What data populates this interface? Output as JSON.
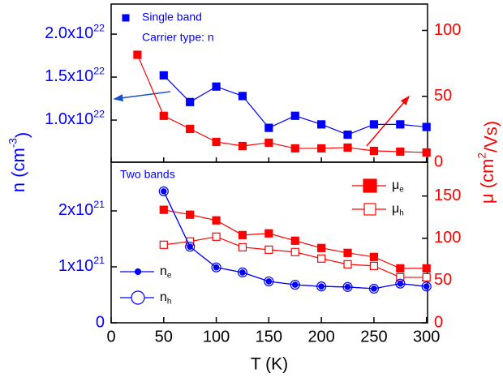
{
  "chart_data": [
    {
      "type": "line",
      "ylabel": {
        "text": "n (cm",
        "sup": "-3",
        "tail": ")"
      },
      "y2label": {
        "text": "μ (cm",
        "sup": "2",
        "tail": "/Vs)"
      },
      "xlim": [
        0,
        301
      ],
      "ylim": [
        5.1e+21,
        2.35e+22
      ],
      "y2lim": [
        0,
        120
      ],
      "yticks": [
        {
          "value": 1e+22,
          "label": "1.0x10",
          "sup": "22"
        },
        {
          "value": 1.5e+22,
          "label": "1.5x10",
          "sup": "22"
        },
        {
          "value": 2e+22,
          "label": "2.0x10",
          "sup": "22"
        }
      ],
      "y2ticks": [
        0,
        50,
        100
      ],
      "annotations": [
        "Carrier type: n"
      ],
      "series": [
        {
          "name": "Single band",
          "color": "#0000ff",
          "marker": "square",
          "axis": "y",
          "x": [
            50,
            75,
            100,
            125,
            150,
            175,
            200,
            225,
            250,
            275,
            300
          ],
          "values": [
            1.52e+22,
            1.21e+22,
            1.39e+22,
            1.28e+22,
            9.1e+21,
            1.05e+22,
            9.5e+21,
            8.3e+21,
            9.5e+21,
            9.5e+21,
            9.2e+21
          ]
        },
        {
          "color": "#ff0000",
          "marker": "square",
          "axis": "y2",
          "x": [
            25,
            50,
            75,
            100,
            125,
            150,
            175,
            200,
            225,
            250,
            275,
            300
          ],
          "values": [
            81.5,
            35.2,
            25.3,
            15.4,
            12.3,
            14.8,
            10.5,
            10.5,
            11.1,
            8.6,
            8.0,
            7.4
          ]
        }
      ]
    },
    {
      "type": "line",
      "xlabel": "T (K)",
      "xlim": [
        0,
        301
      ],
      "ylim": [
        0,
        2.87e+21
      ],
      "y2lim": [
        0,
        190
      ],
      "xticks": [
        0,
        50,
        100,
        150,
        200,
        250,
        300
      ],
      "yticks": [
        0,
        {
          "value": 1e+21,
          "label": "1x10",
          "sup": "21"
        },
        {
          "value": 2e+21,
          "label": "2x10",
          "sup": "21"
        }
      ],
      "y2ticks": [
        0,
        50,
        100,
        150
      ],
      "annotations": [
        "Two bands"
      ],
      "series": [
        {
          "name": "μ",
          "subscript": "e",
          "color": "#ff0000",
          "marker": "square",
          "axis": "y2",
          "x": [
            50,
            75,
            100,
            125,
            150,
            175,
            200,
            225,
            250,
            275,
            300
          ],
          "values": [
            133.7,
            127.9,
            121.2,
            103.8,
            105.8,
            97.1,
            88.5,
            82.7,
            77.9,
            64.4,
            64.4
          ]
        },
        {
          "name": "μ",
          "subscript": "h",
          "color": "#ff0000",
          "marker": "open-square",
          "axis": "y2",
          "x": [
            50,
            75,
            100,
            125,
            150,
            175,
            200,
            225,
            250,
            275,
            300
          ],
          "values": [
            92.3,
            96.2,
            101.9,
            89.4,
            86.5,
            83.7,
            76.0,
            69.2,
            67.3,
            53.8,
            53.8
          ]
        },
        {
          "name": "n",
          "subscript": "e",
          "color": "#0000ff",
          "marker": "circle",
          "axis": "y",
          "x": [
            50,
            75,
            100,
            125,
            150,
            175,
            200,
            225,
            250,
            275,
            300
          ],
          "values": [
            2.35e+21,
            1.36e+21,
            9.9e+20,
            9e+20,
            7.4e+20,
            6.8e+20,
            6.5e+20,
            6.4e+20,
            6.1e+20,
            7e+20,
            6.5e+20
          ]
        },
        {
          "name": "n",
          "subscript": "h",
          "color": "#0000ff",
          "marker": "open-circle",
          "axis": "y",
          "x": [
            50,
            75,
            100,
            125,
            150,
            175,
            200,
            225,
            250,
            275,
            300
          ],
          "values": [
            2.35e+21,
            1.36e+21,
            9.9e+20,
            9e+20,
            7.4e+20,
            6.8e+20,
            6.5e+20,
            6.4e+20,
            6.1e+20,
            7e+20,
            6.5e+20
          ]
        }
      ]
    }
  ]
}
